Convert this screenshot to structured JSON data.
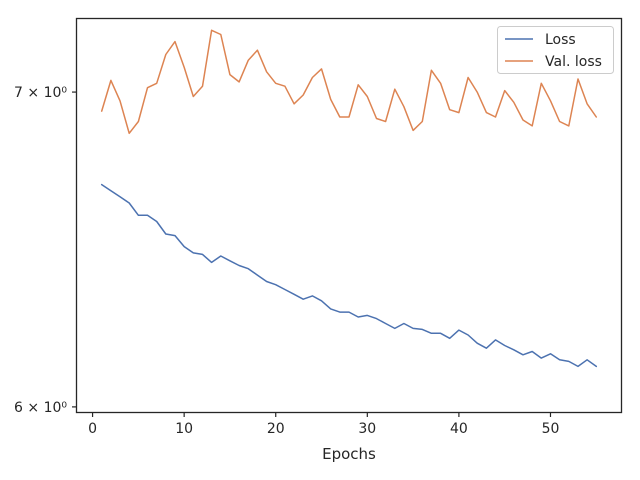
{
  "chart_data": {
    "type": "line",
    "title": "",
    "xlabel": "Epochs",
    "ylabel": "",
    "xlim": [
      -1.7,
      57.7
    ],
    "ylim": [
      5.985,
      7.255
    ],
    "y_scale": "log",
    "x_ticks": [
      0,
      10,
      20,
      30,
      40,
      50
    ],
    "x_tick_labels": [
      "0",
      "10",
      "20",
      "30",
      "40",
      "50"
    ],
    "y_ticks": [
      6,
      7
    ],
    "y_tick_labels": [
      "6 × 10⁰",
      "7 × 10⁰"
    ],
    "grid": false,
    "legend_position": "top-right",
    "x": [
      1,
      2,
      3,
      4,
      5,
      6,
      7,
      8,
      9,
      10,
      11,
      12,
      13,
      14,
      15,
      16,
      17,
      18,
      19,
      20,
      21,
      22,
      23,
      24,
      25,
      26,
      27,
      28,
      29,
      30,
      31,
      32,
      33,
      34,
      35,
      36,
      37,
      38,
      39,
      40,
      41,
      42,
      43,
      44,
      45,
      46,
      47,
      48,
      49,
      50,
      51,
      52,
      53,
      54,
      55
    ],
    "series": [
      {
        "name": "Loss",
        "color": "#4c72b0",
        "values": [
          6.69,
          6.67,
          6.65,
          6.63,
          6.59,
          6.59,
          6.57,
          6.53,
          6.525,
          6.49,
          6.47,
          6.465,
          6.44,
          6.46,
          6.445,
          6.43,
          6.42,
          6.4,
          6.38,
          6.37,
          6.355,
          6.34,
          6.325,
          6.335,
          6.32,
          6.295,
          6.285,
          6.285,
          6.27,
          6.275,
          6.265,
          6.25,
          6.235,
          6.25,
          6.235,
          6.232,
          6.22,
          6.22,
          6.205,
          6.23,
          6.215,
          6.19,
          6.175,
          6.2,
          6.183,
          6.17,
          6.155,
          6.165,
          6.145,
          6.158,
          6.14,
          6.135,
          6.12,
          6.14,
          6.12
        ]
      },
      {
        "name": "Val. loss",
        "color": "#dd8452",
        "values": [
          6.935,
          7.04,
          6.97,
          6.86,
          6.9,
          7.015,
          7.03,
          7.13,
          7.175,
          7.085,
          6.985,
          7.02,
          7.215,
          7.2,
          7.06,
          7.035,
          7.11,
          7.145,
          7.07,
          7.03,
          7.02,
          6.96,
          6.99,
          7.05,
          7.08,
          6.975,
          6.915,
          6.915,
          7.025,
          6.985,
          6.91,
          6.9,
          7.01,
          6.95,
          6.87,
          6.9,
          7.075,
          7.03,
          6.94,
          6.93,
          7.05,
          7.0,
          6.93,
          6.915,
          7.005,
          6.965,
          6.905,
          6.885,
          7.03,
          6.97,
          6.9,
          6.885,
          7.045,
          6.96,
          6.915
        ]
      }
    ]
  }
}
